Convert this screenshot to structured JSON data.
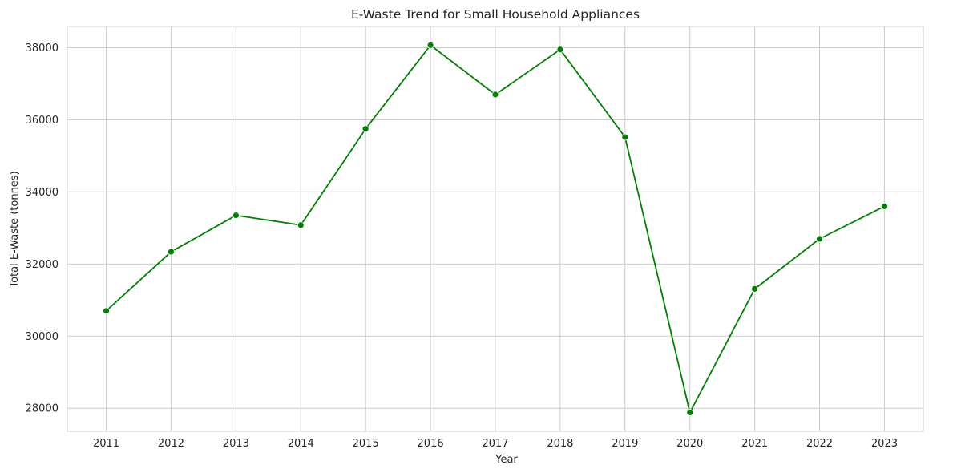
{
  "chart_data": {
    "type": "line",
    "title": "E-Waste Trend for Small Household Appliances",
    "xlabel": "Year",
    "ylabel": "Total E-Waste (tonnes)",
    "x": [
      2011,
      2012,
      2013,
      2014,
      2015,
      2016,
      2017,
      2018,
      2019,
      2020,
      2021,
      2022,
      2023
    ],
    "series": [
      {
        "values": [
          30700,
          32340,
          33350,
          33080,
          35750,
          38070,
          36700,
          37950,
          35520,
          27880,
          31310,
          32700,
          33600
        ],
        "color": "#008000",
        "marker": "circle"
      }
    ],
    "xlim": [
      2010.4,
      2023.6
    ],
    "ylim": [
      27360,
      38590
    ],
    "xticks": [
      "2011",
      "2012",
      "2013",
      "2014",
      "2015",
      "2016",
      "2017",
      "2018",
      "2019",
      "2020",
      "2021",
      "2022",
      "2023"
    ],
    "yticks": [
      "28000",
      "30000",
      "32000",
      "34000",
      "36000",
      "38000"
    ],
    "grid": true,
    "legend": "none"
  }
}
